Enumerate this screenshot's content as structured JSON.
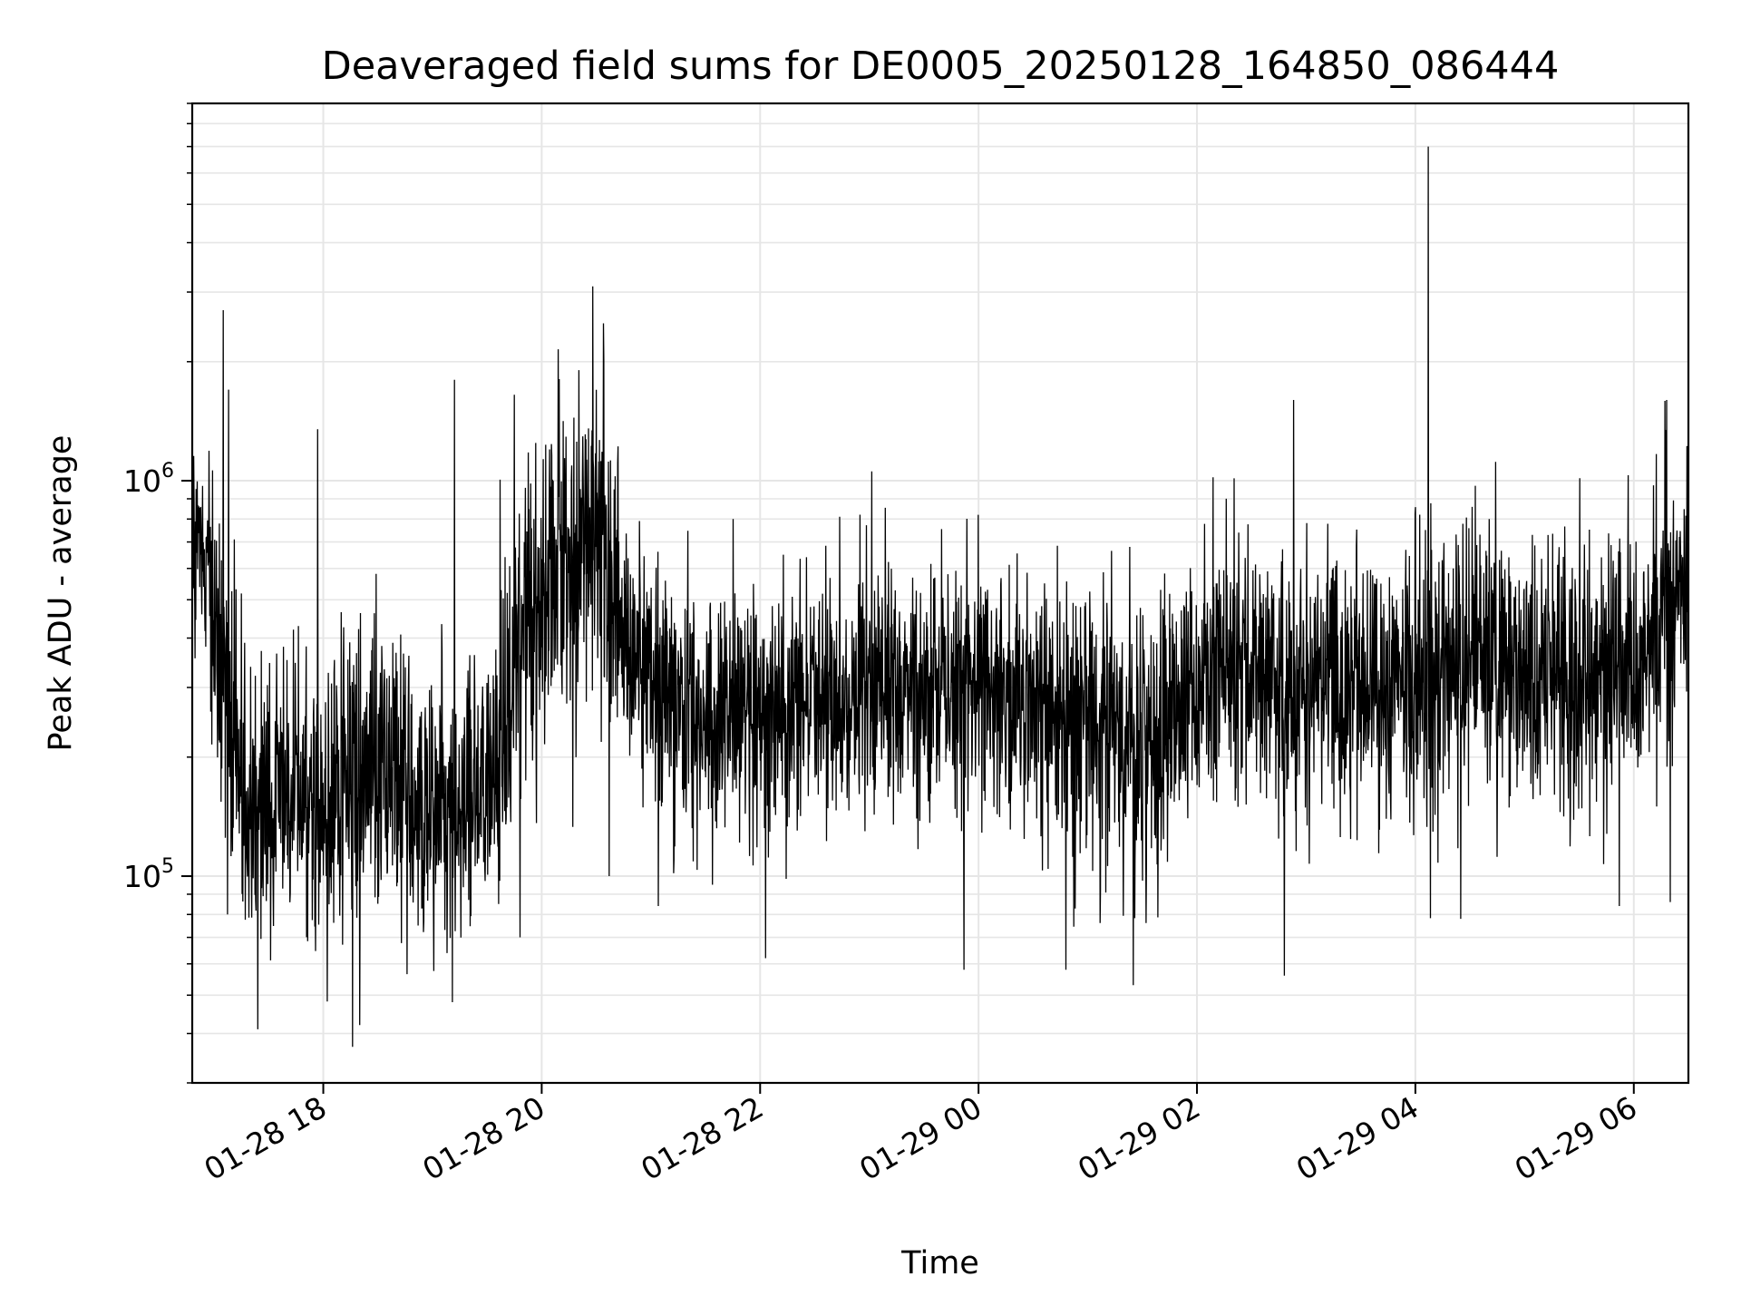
{
  "chart_data": {
    "type": "line",
    "title": "Deaveraged field sums for DE0005_20250128_164850_086444",
    "xlabel": "Time",
    "ylabel": "Peak ADU - average",
    "yscale": "log",
    "grid": true,
    "line_color": "#000000",
    "grid_color": "#e6e6e6",
    "xlim": [
      "2025-01-28 16:48",
      "2025-01-29 06:30"
    ],
    "ylim": [
      30000,
      9000000
    ],
    "x_ticks": [
      {
        "value": "2025-01-28 18:00",
        "label": "01-28 18"
      },
      {
        "value": "2025-01-28 20:00",
        "label": "01-28 20"
      },
      {
        "value": "2025-01-28 22:00",
        "label": "01-28 22"
      },
      {
        "value": "2025-01-29 00:00",
        "label": "01-29 00"
      },
      {
        "value": "2025-01-29 02:00",
        "label": "01-29 02"
      },
      {
        "value": "2025-01-29 04:00",
        "label": "01-29 04"
      },
      {
        "value": "2025-01-29 06:00",
        "label": "01-29 06"
      }
    ],
    "y_ticks": [
      {
        "value": 100000,
        "base": "10",
        "exp": "5"
      },
      {
        "value": 1000000,
        "base": "10",
        "exp": "6"
      }
    ],
    "series": [
      {
        "x": [
          "2025-01-28 16:48",
          "2025-01-28 17:00",
          "2025-01-28 17:10",
          "2025-01-28 17:20",
          "2025-01-28 17:30",
          "2025-01-28 17:40",
          "2025-01-28 17:50",
          "2025-01-28 18:00",
          "2025-01-28 18:10",
          "2025-01-28 18:20",
          "2025-01-28 18:30",
          "2025-01-28 18:40",
          "2025-01-28 18:50",
          "2025-01-28 19:00",
          "2025-01-28 19:10",
          "2025-01-28 19:20",
          "2025-01-28 19:30",
          "2025-01-28 19:40",
          "2025-01-28 19:50",
          "2025-01-28 20:00",
          "2025-01-28 20:10",
          "2025-01-28 20:20",
          "2025-01-28 20:30",
          "2025-01-28 20:40",
          "2025-01-28 20:50",
          "2025-01-28 21:00",
          "2025-01-28 21:10",
          "2025-01-28 21:20",
          "2025-01-28 21:30",
          "2025-01-28 21:40",
          "2025-01-28 21:50",
          "2025-01-28 22:00",
          "2025-01-28 22:15",
          "2025-01-28 22:30",
          "2025-01-28 22:45",
          "2025-01-28 23:00",
          "2025-01-28 23:15",
          "2025-01-28 23:30",
          "2025-01-28 23:45",
          "2025-01-29 00:00",
          "2025-01-29 00:15",
          "2025-01-29 00:30",
          "2025-01-29 00:45",
          "2025-01-29 01:00",
          "2025-01-29 01:15",
          "2025-01-29 01:30",
          "2025-01-29 01:45",
          "2025-01-29 02:00",
          "2025-01-29 02:15",
          "2025-01-29 02:30",
          "2025-01-29 02:45",
          "2025-01-29 03:00",
          "2025-01-29 03:15",
          "2025-01-29 03:30",
          "2025-01-29 03:45",
          "2025-01-29 04:00",
          "2025-01-29 04:15",
          "2025-01-29 04:30",
          "2025-01-29 04:45",
          "2025-01-29 05:00",
          "2025-01-29 05:15",
          "2025-01-29 05:30",
          "2025-01-29 05:45",
          "2025-01-29 06:00",
          "2025-01-29 06:15",
          "2025-01-29 06:30"
        ],
        "y": [
          800000,
          450000,
          250000,
          130000,
          140000,
          150000,
          160000,
          155000,
          160000,
          165000,
          150000,
          145000,
          140000,
          145000,
          150000,
          150000,
          170000,
          220000,
          450000,
          500000,
          700000,
          750000,
          800000,
          500000,
          350000,
          330000,
          300000,
          260000,
          230000,
          280000,
          270000,
          260000,
          260000,
          280000,
          290000,
          300000,
          300000,
          300000,
          300000,
          310000,
          290000,
          270000,
          260000,
          250000,
          230000,
          220000,
          230000,
          280000,
          330000,
          350000,
          340000,
          330000,
          320000,
          310000,
          300000,
          310000,
          320000,
          330000,
          340000,
          320000,
          310000,
          300000,
          320000,
          340000,
          480000,
          600000
        ],
        "lo": [
          300000,
          150000,
          70000,
          55000,
          55000,
          60000,
          60000,
          60000,
          55000,
          55000,
          60000,
          60000,
          55000,
          60000,
          60000,
          60000,
          65000,
          75000,
          120000,
          140000,
          150000,
          160000,
          170000,
          150000,
          120000,
          110000,
          100000,
          85000,
          85000,
          100000,
          100000,
          95000,
          100000,
          110000,
          115000,
          115000,
          115000,
          115000,
          110000,
          110000,
          100000,
          95000,
          90000,
          80000,
          75000,
          70000,
          80000,
          100000,
          120000,
          125000,
          125000,
          120000,
          115000,
          110000,
          110000,
          110000,
          115000,
          120000,
          125000,
          120000,
          115000,
          110000,
          115000,
          120000,
          170000,
          250000
        ],
        "hi": [
          1300000,
          1100000,
          700000,
          550000,
          500000,
          480000,
          520000,
          800000,
          700000,
          650000,
          600000,
          520000,
          500000,
          560000,
          550000,
          560000,
          600000,
          800000,
          1300000,
          1600000,
          2000000,
          2400000,
          2200000,
          1500000,
          950000,
          850000,
          750000,
          700000,
          650000,
          800000,
          780000,
          650000,
          700000,
          750000,
          780000,
          800000,
          800000,
          800000,
          780000,
          780000,
          750000,
          720000,
          700000,
          680000,
          650000,
          650000,
          700000,
          800000,
          900000,
          950000,
          950000,
          900000,
          880000,
          850000,
          820000,
          900000,
          950000,
          1000000,
          1050000,
          950000,
          900000,
          880000,
          950000,
          1000000,
          1200000,
          1500000
        ],
        "spikes": [
          {
            "x": "2025-01-28 17:05",
            "y": 2700000
          },
          {
            "x": "2025-01-28 17:08",
            "y": 1700000
          },
          {
            "x": "2025-01-28 17:57",
            "y": 1350000
          },
          {
            "x": "2025-01-28 18:16",
            "y": 37000
          },
          {
            "x": "2025-01-28 18:20",
            "y": 42000
          },
          {
            "x": "2025-01-28 17:24",
            "y": 41000
          },
          {
            "x": "2025-01-28 19:12",
            "y": 1800000
          },
          {
            "x": "2025-01-28 19:11",
            "y": 48000
          },
          {
            "x": "2025-01-28 19:45",
            "y": 1650000
          },
          {
            "x": "2025-01-28 20:09",
            "y": 2150000
          },
          {
            "x": "2025-01-28 20:28",
            "y": 3100000
          },
          {
            "x": "2025-01-28 20:34",
            "y": 2500000
          },
          {
            "x": "2025-01-28 20:37",
            "y": 100000
          },
          {
            "x": "2025-01-28 21:04",
            "y": 84000
          },
          {
            "x": "2025-01-28 22:03",
            "y": 62000
          },
          {
            "x": "2025-01-28 23:52",
            "y": 58000
          },
          {
            "x": "2025-01-29 00:48",
            "y": 58000
          },
          {
            "x": "2025-01-29 01:25",
            "y": 53000
          },
          {
            "x": "2025-01-29 02:48",
            "y": 56000
          },
          {
            "x": "2025-01-29 02:53",
            "y": 1600000
          },
          {
            "x": "2025-01-29 04:07",
            "y": 7000000
          },
          {
            "x": "2025-01-29 04:25",
            "y": 78000
          },
          {
            "x": "2025-01-29 05:52",
            "y": 84000
          },
          {
            "x": "2025-01-29 06:20",
            "y": 86000
          },
          {
            "x": "2025-01-29 06:18",
            "y": 1600000
          }
        ]
      }
    ]
  }
}
